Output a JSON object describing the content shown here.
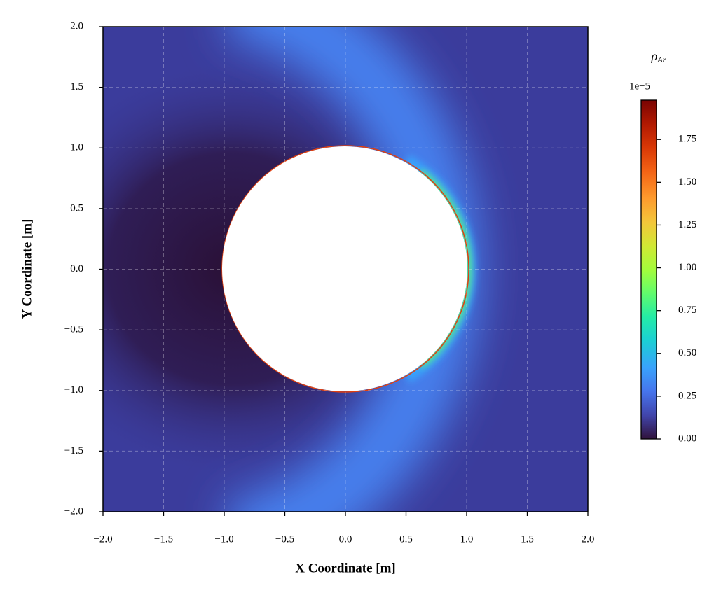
{
  "chart_data": {
    "type": "contour",
    "xlabel": "X Coordinate [m]",
    "ylabel": "Y Coordinate [m]",
    "xlim": [
      -2,
      2
    ],
    "ylim": [
      -2,
      2
    ],
    "xticks": [
      {
        "value": -2,
        "label": "−2.0"
      },
      {
        "value": -1.5,
        "label": "−1.5"
      },
      {
        "value": -1,
        "label": "−1.0"
      },
      {
        "value": -0.5,
        "label": "−0.5"
      },
      {
        "value": 0,
        "label": "0.0"
      },
      0.5,
      {
        "value": 1,
        "label": "1.0"
      },
      1.5,
      {
        "value": 2,
        "label": "2.0"
      }
    ],
    "yticks": [
      {
        "value": -2,
        "label": "−2.0"
      },
      {
        "value": -1.5,
        "label": "−1.5"
      },
      {
        "value": -1,
        "label": "−1.0"
      },
      {
        "value": -0.5,
        "label": "−0.5"
      },
      {
        "value": 0,
        "label": "0.0"
      },
      0.5,
      {
        "value": 1,
        "label": "1.0"
      },
      1.5,
      {
        "value": 2,
        "label": "2.0"
      }
    ],
    "grid": true,
    "colorbar_label": {
      "symbol": "ρ",
      "subscript": "Ar"
    },
    "colorbar_offset": "1e−5",
    "clim": [
      0,
      1.98
    ],
    "cticks": [
      {
        "value": 0,
        "label": "0.00"
      },
      0.25,
      {
        "value": 0.5,
        "label": "0.50"
      },
      0.75,
      {
        "value": 1,
        "label": "1.00"
      },
      1.25,
      {
        "value": 1.5,
        "label": "1.50"
      },
      1.75
    ]
  }
}
